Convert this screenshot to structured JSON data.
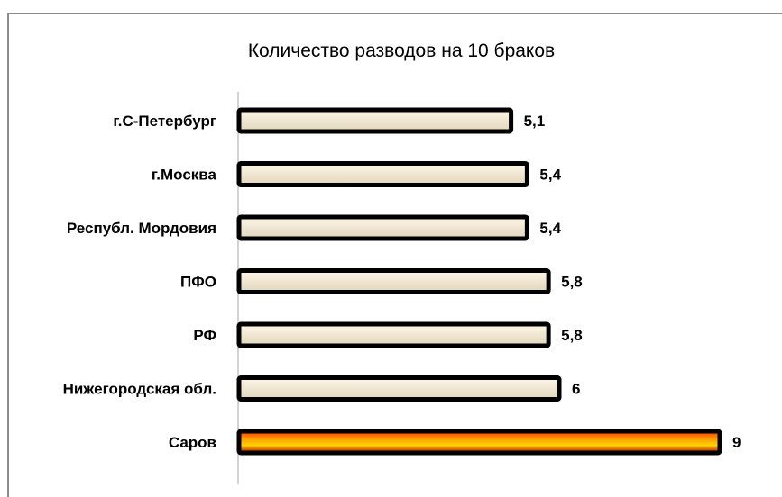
{
  "chart_data": {
    "type": "bar",
    "orientation": "horizontal",
    "title": "Количество разводов  на 10 браков",
    "categories": [
      "г.С-Петербург",
      "г.Москва",
      "Республ. Мордовия",
      "ПФО",
      "РФ",
      "Нижегородская обл.",
      "Саров"
    ],
    "values": [
      5.1,
      5.4,
      5.4,
      5.8,
      5.8,
      6,
      9
    ],
    "value_labels": [
      "5,1",
      "5,4",
      "5,4",
      "5,8",
      "5,8",
      "6",
      "9"
    ],
    "highlight_category": "Саров",
    "xlim": [
      0,
      9
    ],
    "grid": false,
    "legend": "none",
    "colors": {
      "bar_fill": "#efe6d2",
      "bar_outline": "#000000",
      "highlight_gradient": [
        "#ff3b00",
        "#ff9a00",
        "#ffd400",
        "#b30000"
      ],
      "axis": "#a6a6a6",
      "frame": "#8c8c8c"
    }
  }
}
